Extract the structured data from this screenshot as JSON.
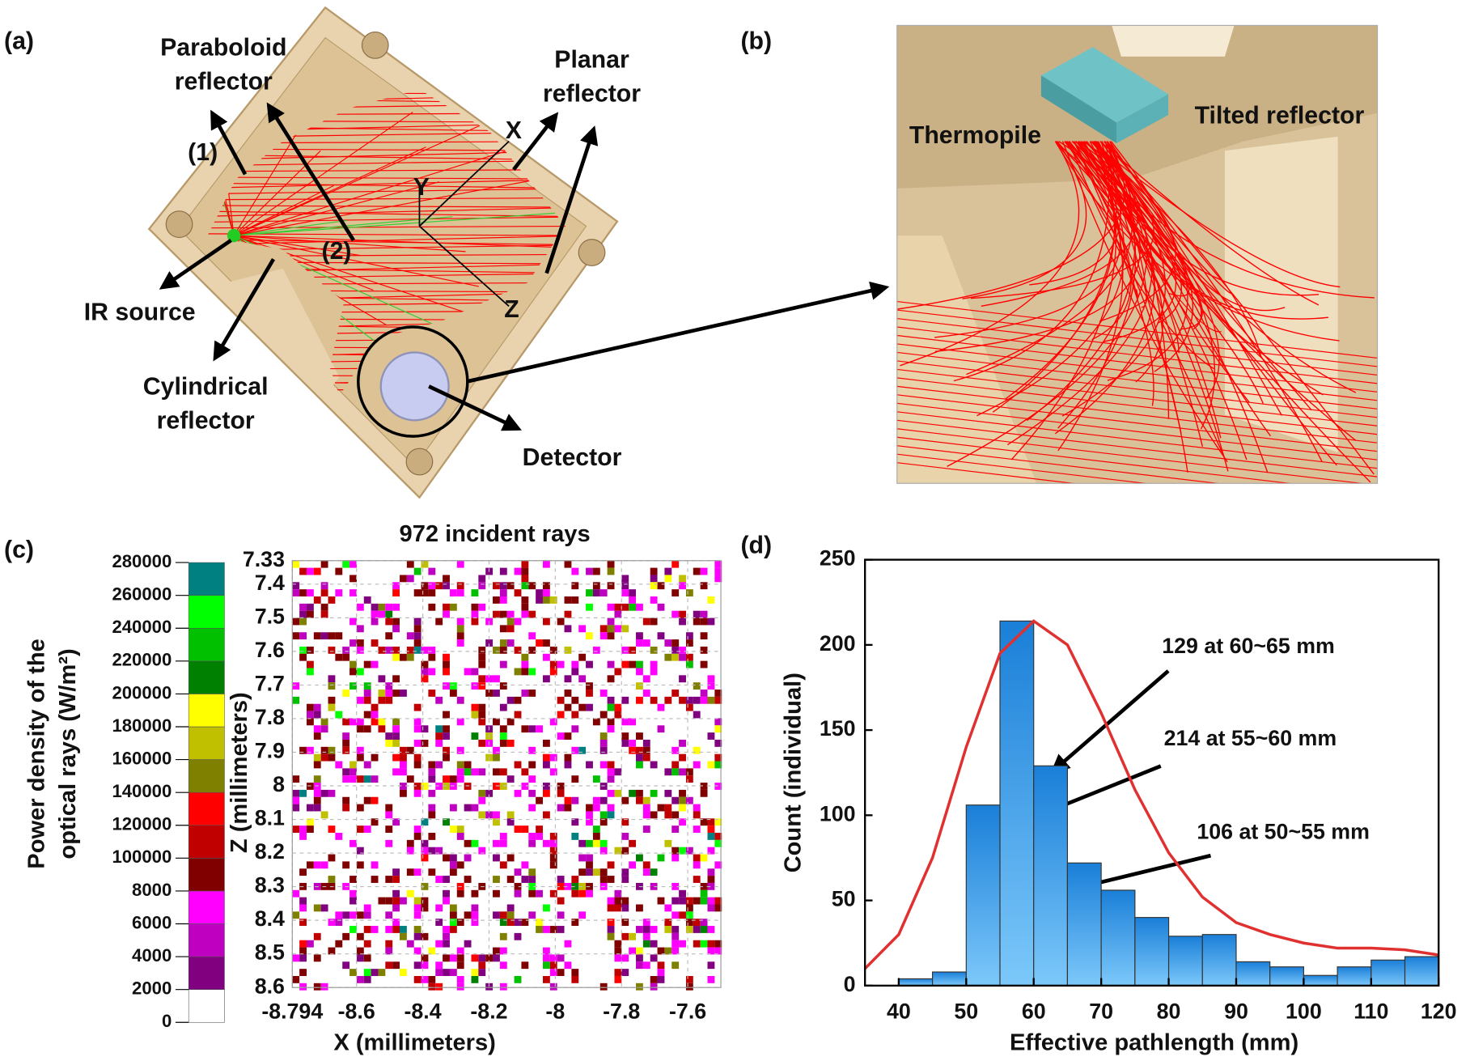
{
  "panel_a": {
    "label": "(a)",
    "annotations": [
      [
        "Paraboloid",
        "reflector"
      ],
      [
        "Planar",
        "reflector"
      ],
      [
        "(1)"
      ],
      [
        "(2)"
      ],
      [
        "X"
      ],
      [
        "Y"
      ],
      [
        "Z"
      ],
      [
        "IR source"
      ],
      [
        "Cylindrical",
        "reflector"
      ],
      [
        "Detector"
      ]
    ]
  },
  "panel_b": {
    "label": "(b)",
    "annotations": [
      [
        "Thermopile"
      ],
      [
        "Tilted reflector"
      ]
    ]
  },
  "panel_c": {
    "label": "(c)"
  },
  "panel_d": {
    "label": "(d)"
  },
  "chart_data": [
    {
      "type": "heatmap",
      "title": "972 incident rays",
      "x_label": "X (millimeters)",
      "y_label": "Z (millimeters)",
      "xlim": [
        -8.794,
        -7.5
      ],
      "ylim": [
        7.33,
        8.6
      ],
      "xticks": [
        -8.794,
        -8.6,
        -8.4,
        -8.2,
        -8,
        -7.8,
        -7.6
      ],
      "yticks": [
        7.33,
        7.4,
        7.5,
        7.6,
        7.7,
        7.8,
        7.9,
        8,
        8.1,
        8.2,
        8.3,
        8.4,
        8.5,
        8.6
      ],
      "grid": true,
      "colorbar": {
        "label": [
          "Power density of the",
          "optical rays (W/m²)"
        ],
        "ticks": [
          0,
          2000,
          4000,
          6000,
          8000,
          100000,
          120000,
          140000,
          160000,
          180000,
          200000,
          220000,
          240000,
          260000,
          280000
        ],
        "colors": [
          "#ffffff",
          "#800080",
          "#c000c0",
          "#ff00ff",
          "#800000",
          "#c00000",
          "#ff0000",
          "#808000",
          "#c0c000",
          "#ffff00",
          "#008000",
          "#00c000",
          "#00ff00",
          "#008080"
        ]
      }
    },
    {
      "type": "histogram",
      "x_label": "Effective pathlength (mm)",
      "y_label": "Count (individual)",
      "bins": [
        40,
        45,
        50,
        55,
        60,
        65,
        70,
        75,
        80,
        85,
        90,
        95,
        100,
        105,
        110,
        115,
        120
      ],
      "values": [
        4,
        8,
        106,
        214,
        129,
        72,
        56,
        40,
        29,
        30,
        14,
        11,
        6,
        11,
        15,
        17
      ],
      "color": "#2196f3",
      "fit": {
        "x": [
          35,
          40,
          45,
          50,
          55,
          60,
          65,
          70,
          75,
          80,
          85,
          90,
          95,
          100,
          105,
          110,
          115,
          120
        ],
        "values": [
          10,
          30,
          75,
          140,
          195,
          214,
          200,
          160,
          115,
          78,
          52,
          37,
          30,
          25,
          22,
          22,
          21,
          18
        ],
        "color": "#e03030"
      },
      "xlim": [
        35,
        120
      ],
      "ylim": [
        0,
        250
      ],
      "xticks": [
        40,
        50,
        60,
        70,
        80,
        90,
        100,
        110,
        120
      ],
      "yticks": [
        0,
        50,
        100,
        150,
        200,
        250
      ],
      "annotations": [
        "129 at 60~65 mm",
        "214 at 55~60 mm",
        "106 at 50~55 mm"
      ]
    }
  ]
}
